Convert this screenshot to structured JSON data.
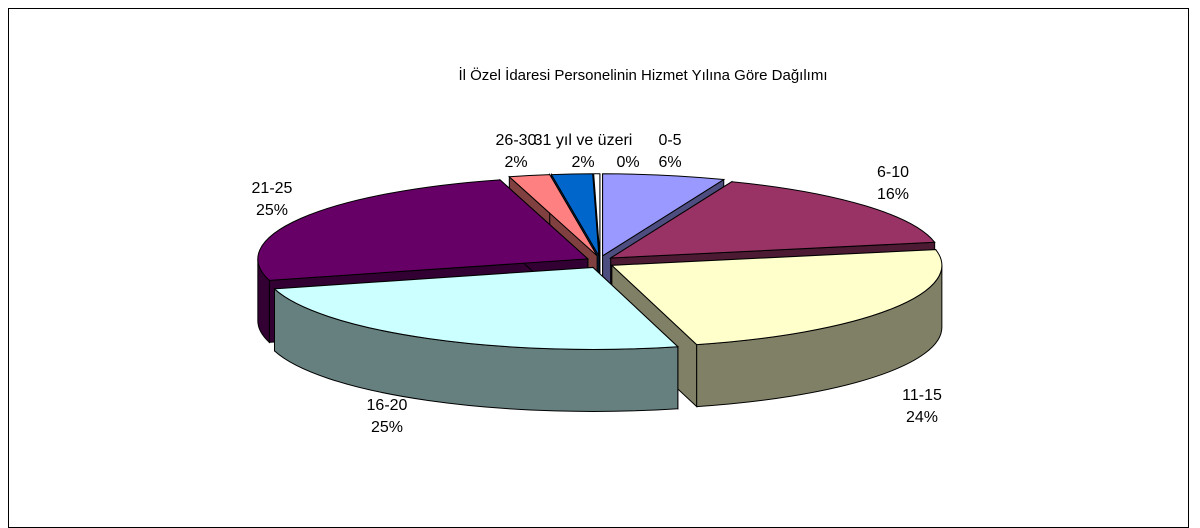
{
  "chart_data": {
    "type": "pie",
    "title": "İl Özel İdaresi Personelinin Hizmet  Yılına  Göre  Dağılımı",
    "slices": [
      {
        "label": "0-5",
        "value": 6,
        "percent_label": "6%",
        "color": "#9999FF",
        "side": "#4D4D80"
      },
      {
        "label": "6-10",
        "value": 16,
        "percent_label": "16%",
        "color": "#993366",
        "side": "#4D1A33"
      },
      {
        "label": "11-15",
        "value": 24,
        "percent_label": "24%",
        "color": "#FFFFCC",
        "side": "#808066"
      },
      {
        "label": "16-20",
        "value": 25,
        "percent_label": "25%",
        "color": "#CCFFFF",
        "side": "#668080"
      },
      {
        "label": "21-25",
        "value": 25,
        "percent_label": "25%",
        "color": "#660066",
        "side": "#330033"
      },
      {
        "label": "26-30",
        "value": 2,
        "percent_label": "2%",
        "color": "#FF8080",
        "side": "#804040"
      },
      {
        "label": "31 yıl ve üzeri",
        "value": 2,
        "percent_label": "2%",
        "color": "#0066CC",
        "side": "#003366"
      },
      {
        "label": "",
        "value": 0.3,
        "percent_label": "0%",
        "color": "#FFFFFF",
        "side": "#808080"
      }
    ]
  }
}
